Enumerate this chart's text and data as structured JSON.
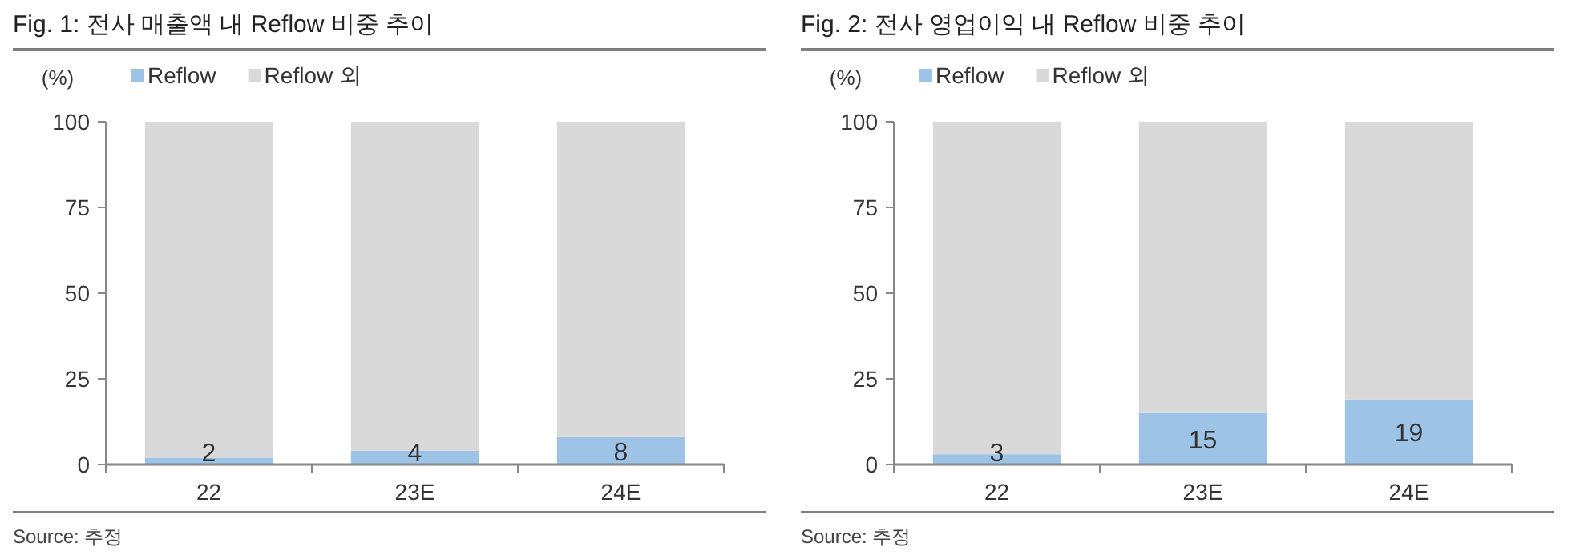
{
  "chart_data": [
    {
      "type": "bar",
      "title": "Fig. 1: 전사 매출액 내 Reflow 비중 추이",
      "ylabel": "(%)",
      "categories": [
        "22",
        "23E",
        "24E"
      ],
      "stacked": true,
      "ylim": [
        0,
        100
      ],
      "yticks": [
        0,
        25,
        50,
        75,
        100
      ],
      "legend": "top left",
      "grid": false,
      "annotations": [
        "Source: 추정"
      ],
      "series": [
        {
          "name": "Reflow",
          "color": "#9dc3e6",
          "values": [
            2,
            4,
            8
          ],
          "value_labels": [
            "2",
            "4",
            "8"
          ]
        },
        {
          "name": "Reflow 외",
          "color": "#d9d9d9",
          "values": [
            98,
            96,
            92
          ]
        }
      ]
    },
    {
      "type": "bar",
      "title": "Fig. 2: 전사 영업이익 내 Reflow 비중 추이",
      "ylabel": "(%)",
      "categories": [
        "22",
        "23E",
        "24E"
      ],
      "stacked": true,
      "ylim": [
        0,
        100
      ],
      "yticks": [
        0,
        25,
        50,
        75,
        100
      ],
      "legend": "top left",
      "grid": false,
      "annotations": [
        "Source: 추정"
      ],
      "series": [
        {
          "name": "Reflow",
          "color": "#9dc3e6",
          "values": [
            3,
            15,
            19
          ],
          "value_labels": [
            "3",
            "15",
            "19"
          ]
        },
        {
          "name": "Reflow 외",
          "color": "#d9d9d9",
          "values": [
            97,
            85,
            81
          ]
        }
      ]
    }
  ]
}
